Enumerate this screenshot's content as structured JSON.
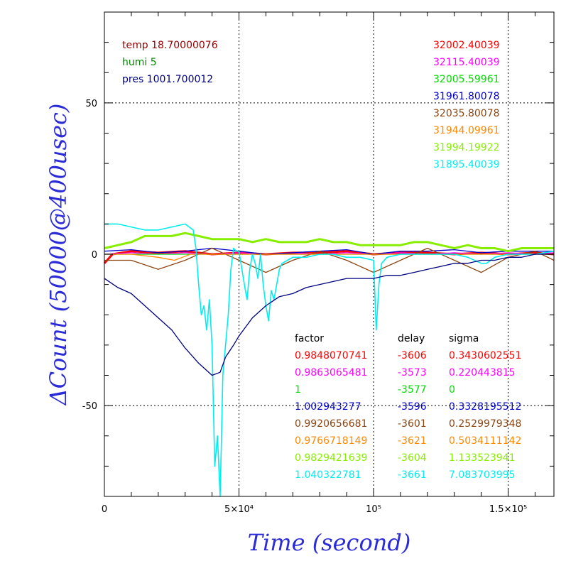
{
  "chart_data": {
    "type": "line",
    "xlabel": "Time (second)",
    "ylabel": "ΔCount (50000@400usec)",
    "xlim": [
      0,
      167000
    ],
    "ylim": [
      -80,
      80
    ],
    "grid": true,
    "x_ticks": [
      {
        "value": 0,
        "label": "0"
      },
      {
        "value": 50000,
        "label": "5×10⁴"
      },
      {
        "value": 100000,
        "label": "10⁵"
      },
      {
        "value": 150000,
        "label": "1.5×10⁵"
      }
    ],
    "y_ticks": [
      {
        "value": 50,
        "label": "50"
      },
      {
        "value": 0,
        "label": "0"
      },
      {
        "value": -50,
        "label": "-50"
      }
    ],
    "env_lines": [
      {
        "text": "temp 18.70000076",
        "color": "#990000"
      },
      {
        "text": "humi 5",
        "color": "#008800"
      },
      {
        "text": "pres 1001.700012",
        "color": "#000080"
      }
    ],
    "series": [
      {
        "color": "#ff0000",
        "mean": "32002.40039",
        "factor": "0.9848070741",
        "delay": "-3606",
        "sigma": "0.3430602551",
        "points": [
          [
            0,
            -3
          ],
          [
            3000,
            0
          ],
          [
            10000,
            1
          ],
          [
            20000,
            0.5
          ],
          [
            30000,
            1
          ],
          [
            40000,
            0
          ],
          [
            50000,
            0.5
          ],
          [
            60000,
            0
          ],
          [
            70000,
            0.5
          ],
          [
            80000,
            0.5
          ],
          [
            90000,
            1
          ],
          [
            100000,
            0
          ],
          [
            110000,
            0.5
          ],
          [
            120000,
            0.5
          ],
          [
            130000,
            0
          ],
          [
            140000,
            0.5
          ],
          [
            150000,
            0
          ],
          [
            160000,
            0.5
          ],
          [
            167000,
            0
          ]
        ]
      },
      {
        "color": "#ff00ff",
        "mean": "32115.40039",
        "factor": "0.9863065481",
        "delay": "-3573",
        "sigma": "0.220443815",
        "points": [
          [
            0,
            0
          ],
          [
            10000,
            0.5
          ],
          [
            20000,
            0
          ],
          [
            30000,
            0.5
          ],
          [
            40000,
            0
          ],
          [
            50000,
            0.5
          ],
          [
            60000,
            0
          ],
          [
            70000,
            0.5
          ],
          [
            80000,
            0
          ],
          [
            90000,
            0.5
          ],
          [
            100000,
            0
          ],
          [
            110000,
            0.5
          ],
          [
            120000,
            0
          ],
          [
            130000,
            0.5
          ],
          [
            140000,
            0
          ],
          [
            150000,
            0.5
          ],
          [
            160000,
            0
          ],
          [
            167000,
            0.5
          ]
        ]
      },
      {
        "color": "#00dd00",
        "mean": "32005.59961",
        "factor": "1",
        "delay": "-3577",
        "sigma": "0",
        "points": [
          [
            0,
            0
          ],
          [
            167000,
            0
          ]
        ]
      },
      {
        "color": "#0000cc",
        "mean": "31961.80078",
        "factor": "1.002943277",
        "delay": "-3596",
        "sigma": "0.3328195512",
        "points": [
          [
            0,
            1
          ],
          [
            10000,
            1.5
          ],
          [
            20000,
            0.5
          ],
          [
            30000,
            1
          ],
          [
            40000,
            2
          ],
          [
            50000,
            1
          ],
          [
            60000,
            0
          ],
          [
            70000,
            0.5
          ],
          [
            80000,
            1
          ],
          [
            90000,
            1.5
          ],
          [
            100000,
            0
          ],
          [
            110000,
            1
          ],
          [
            120000,
            1
          ],
          [
            130000,
            1.5
          ],
          [
            140000,
            0.5
          ],
          [
            150000,
            1
          ],
          [
            160000,
            1
          ],
          [
            167000,
            1
          ]
        ]
      },
      {
        "color": "#8b4513",
        "mean": "32035.80078",
        "factor": "0.9920656681",
        "delay": "-3601",
        "sigma": "0.2529979348",
        "points": [
          [
            0,
            -2
          ],
          [
            10000,
            -2
          ],
          [
            20000,
            -5
          ],
          [
            30000,
            -2
          ],
          [
            40000,
            2
          ],
          [
            50000,
            -2
          ],
          [
            60000,
            -6
          ],
          [
            70000,
            -2
          ],
          [
            80000,
            1
          ],
          [
            90000,
            -2
          ],
          [
            100000,
            -6
          ],
          [
            110000,
            -2
          ],
          [
            120000,
            2
          ],
          [
            130000,
            -2
          ],
          [
            140000,
            -6
          ],
          [
            150000,
            -1
          ],
          [
            160000,
            1
          ],
          [
            167000,
            -2
          ]
        ]
      },
      {
        "color": "#ff8800",
        "mean": "31944.09961",
        "factor": "0.9766718149",
        "delay": "-3621",
        "sigma": "0.5034111142",
        "points": [
          [
            0,
            0
          ],
          [
            10000,
            0
          ],
          [
            20000,
            -1
          ],
          [
            26000,
            -2
          ],
          [
            29000,
            -1
          ],
          [
            32000,
            0
          ],
          [
            60000,
            0
          ],
          [
            120000,
            0
          ],
          [
            167000,
            0
          ]
        ]
      },
      {
        "color": "#88ee00",
        "mean": "31994.19922",
        "factor": "0.9829421639",
        "delay": "-3604",
        "sigma": "1.133523941",
        "points": [
          [
            0,
            2
          ],
          [
            5000,
            3
          ],
          [
            10000,
            4
          ],
          [
            15000,
            6
          ],
          [
            20000,
            6
          ],
          [
            25000,
            6
          ],
          [
            30000,
            7
          ],
          [
            35000,
            6
          ],
          [
            40000,
            5
          ],
          [
            45000,
            5
          ],
          [
            50000,
            5
          ],
          [
            55000,
            4
          ],
          [
            60000,
            5
          ],
          [
            65000,
            4
          ],
          [
            70000,
            4
          ],
          [
            75000,
            4
          ],
          [
            80000,
            5
          ],
          [
            85000,
            4
          ],
          [
            90000,
            4
          ],
          [
            95000,
            3
          ],
          [
            100000,
            3
          ],
          [
            105000,
            3
          ],
          [
            110000,
            3
          ],
          [
            115000,
            4
          ],
          [
            120000,
            4
          ],
          [
            125000,
            3
          ],
          [
            130000,
            2
          ],
          [
            135000,
            3
          ],
          [
            140000,
            2
          ],
          [
            145000,
            2
          ],
          [
            150000,
            1
          ],
          [
            155000,
            2
          ],
          [
            160000,
            2
          ],
          [
            167000,
            2
          ]
        ]
      },
      {
        "color": "#00eeee",
        "mean": "31895.40039",
        "factor": "1.040322781",
        "delay": "-3661",
        "sigma": "7.083703995",
        "points": [
          [
            0,
            10
          ],
          [
            5000,
            10
          ],
          [
            10000,
            9
          ],
          [
            15000,
            8
          ],
          [
            20000,
            8
          ],
          [
            25000,
            9
          ],
          [
            30000,
            10
          ],
          [
            33000,
            8
          ],
          [
            34000,
            2
          ],
          [
            35000,
            -10
          ],
          [
            36000,
            -20
          ],
          [
            37000,
            -17
          ],
          [
            38000,
            -25
          ],
          [
            39000,
            -15
          ],
          [
            40000,
            -30
          ],
          [
            41000,
            -70
          ],
          [
            42000,
            -60
          ],
          [
            43000,
            -80
          ],
          [
            44000,
            -40
          ],
          [
            45000,
            -30
          ],
          [
            46000,
            -20
          ],
          [
            47000,
            -5
          ],
          [
            48000,
            2
          ],
          [
            49000,
            1
          ],
          [
            50000,
            1
          ],
          [
            52000,
            -10
          ],
          [
            53000,
            -15
          ],
          [
            54000,
            -5
          ],
          [
            55000,
            0
          ],
          [
            56000,
            -3
          ],
          [
            57000,
            -8
          ],
          [
            58000,
            0
          ],
          [
            59000,
            -10
          ],
          [
            60000,
            -17
          ],
          [
            61000,
            -22
          ],
          [
            62000,
            -12
          ],
          [
            63000,
            -15
          ],
          [
            64000,
            -10
          ],
          [
            65000,
            -5
          ],
          [
            66000,
            -3
          ],
          [
            68000,
            -2
          ],
          [
            70000,
            -1
          ],
          [
            75000,
            -1
          ],
          [
            80000,
            0
          ],
          [
            85000,
            0
          ],
          [
            90000,
            -1
          ],
          [
            95000,
            -1
          ],
          [
            100000,
            -2
          ],
          [
            101000,
            -25
          ],
          [
            102000,
            -10
          ],
          [
            103000,
            -3
          ],
          [
            105000,
            -1
          ],
          [
            110000,
            0
          ],
          [
            115000,
            0
          ],
          [
            120000,
            0
          ],
          [
            125000,
            0
          ],
          [
            130000,
            0
          ],
          [
            135000,
            -1
          ],
          [
            140000,
            -3
          ],
          [
            142000,
            -3
          ],
          [
            145000,
            -1
          ],
          [
            150000,
            0
          ],
          [
            155000,
            0
          ],
          [
            160000,
            0
          ],
          [
            167000,
            1
          ]
        ]
      },
      {
        "color": "#000080",
        "mean": "",
        "factor": "",
        "delay": "",
        "sigma": "",
        "points": [
          [
            0,
            -8
          ],
          [
            5000,
            -11
          ],
          [
            10000,
            -13
          ],
          [
            15000,
            -17
          ],
          [
            20000,
            -21
          ],
          [
            25000,
            -25
          ],
          [
            30000,
            -31
          ],
          [
            35000,
            -36
          ],
          [
            40000,
            -40
          ],
          [
            43000,
            -39
          ],
          [
            45000,
            -34
          ],
          [
            48000,
            -30
          ],
          [
            50000,
            -27
          ],
          [
            55000,
            -21
          ],
          [
            60000,
            -17
          ],
          [
            65000,
            -14
          ],
          [
            70000,
            -13
          ],
          [
            75000,
            -11
          ],
          [
            80000,
            -10
          ],
          [
            85000,
            -9
          ],
          [
            90000,
            -8
          ],
          [
            95000,
            -8
          ],
          [
            100000,
            -8
          ],
          [
            105000,
            -7
          ],
          [
            110000,
            -7
          ],
          [
            115000,
            -6
          ],
          [
            120000,
            -5
          ],
          [
            125000,
            -4
          ],
          [
            130000,
            -3
          ],
          [
            135000,
            -3
          ],
          [
            140000,
            -2
          ],
          [
            145000,
            -2
          ],
          [
            150000,
            -1
          ],
          [
            155000,
            -1
          ],
          [
            160000,
            0
          ],
          [
            167000,
            0
          ]
        ]
      }
    ],
    "table_headers": {
      "factor": "factor",
      "delay": "delay",
      "sigma": "sigma"
    }
  }
}
